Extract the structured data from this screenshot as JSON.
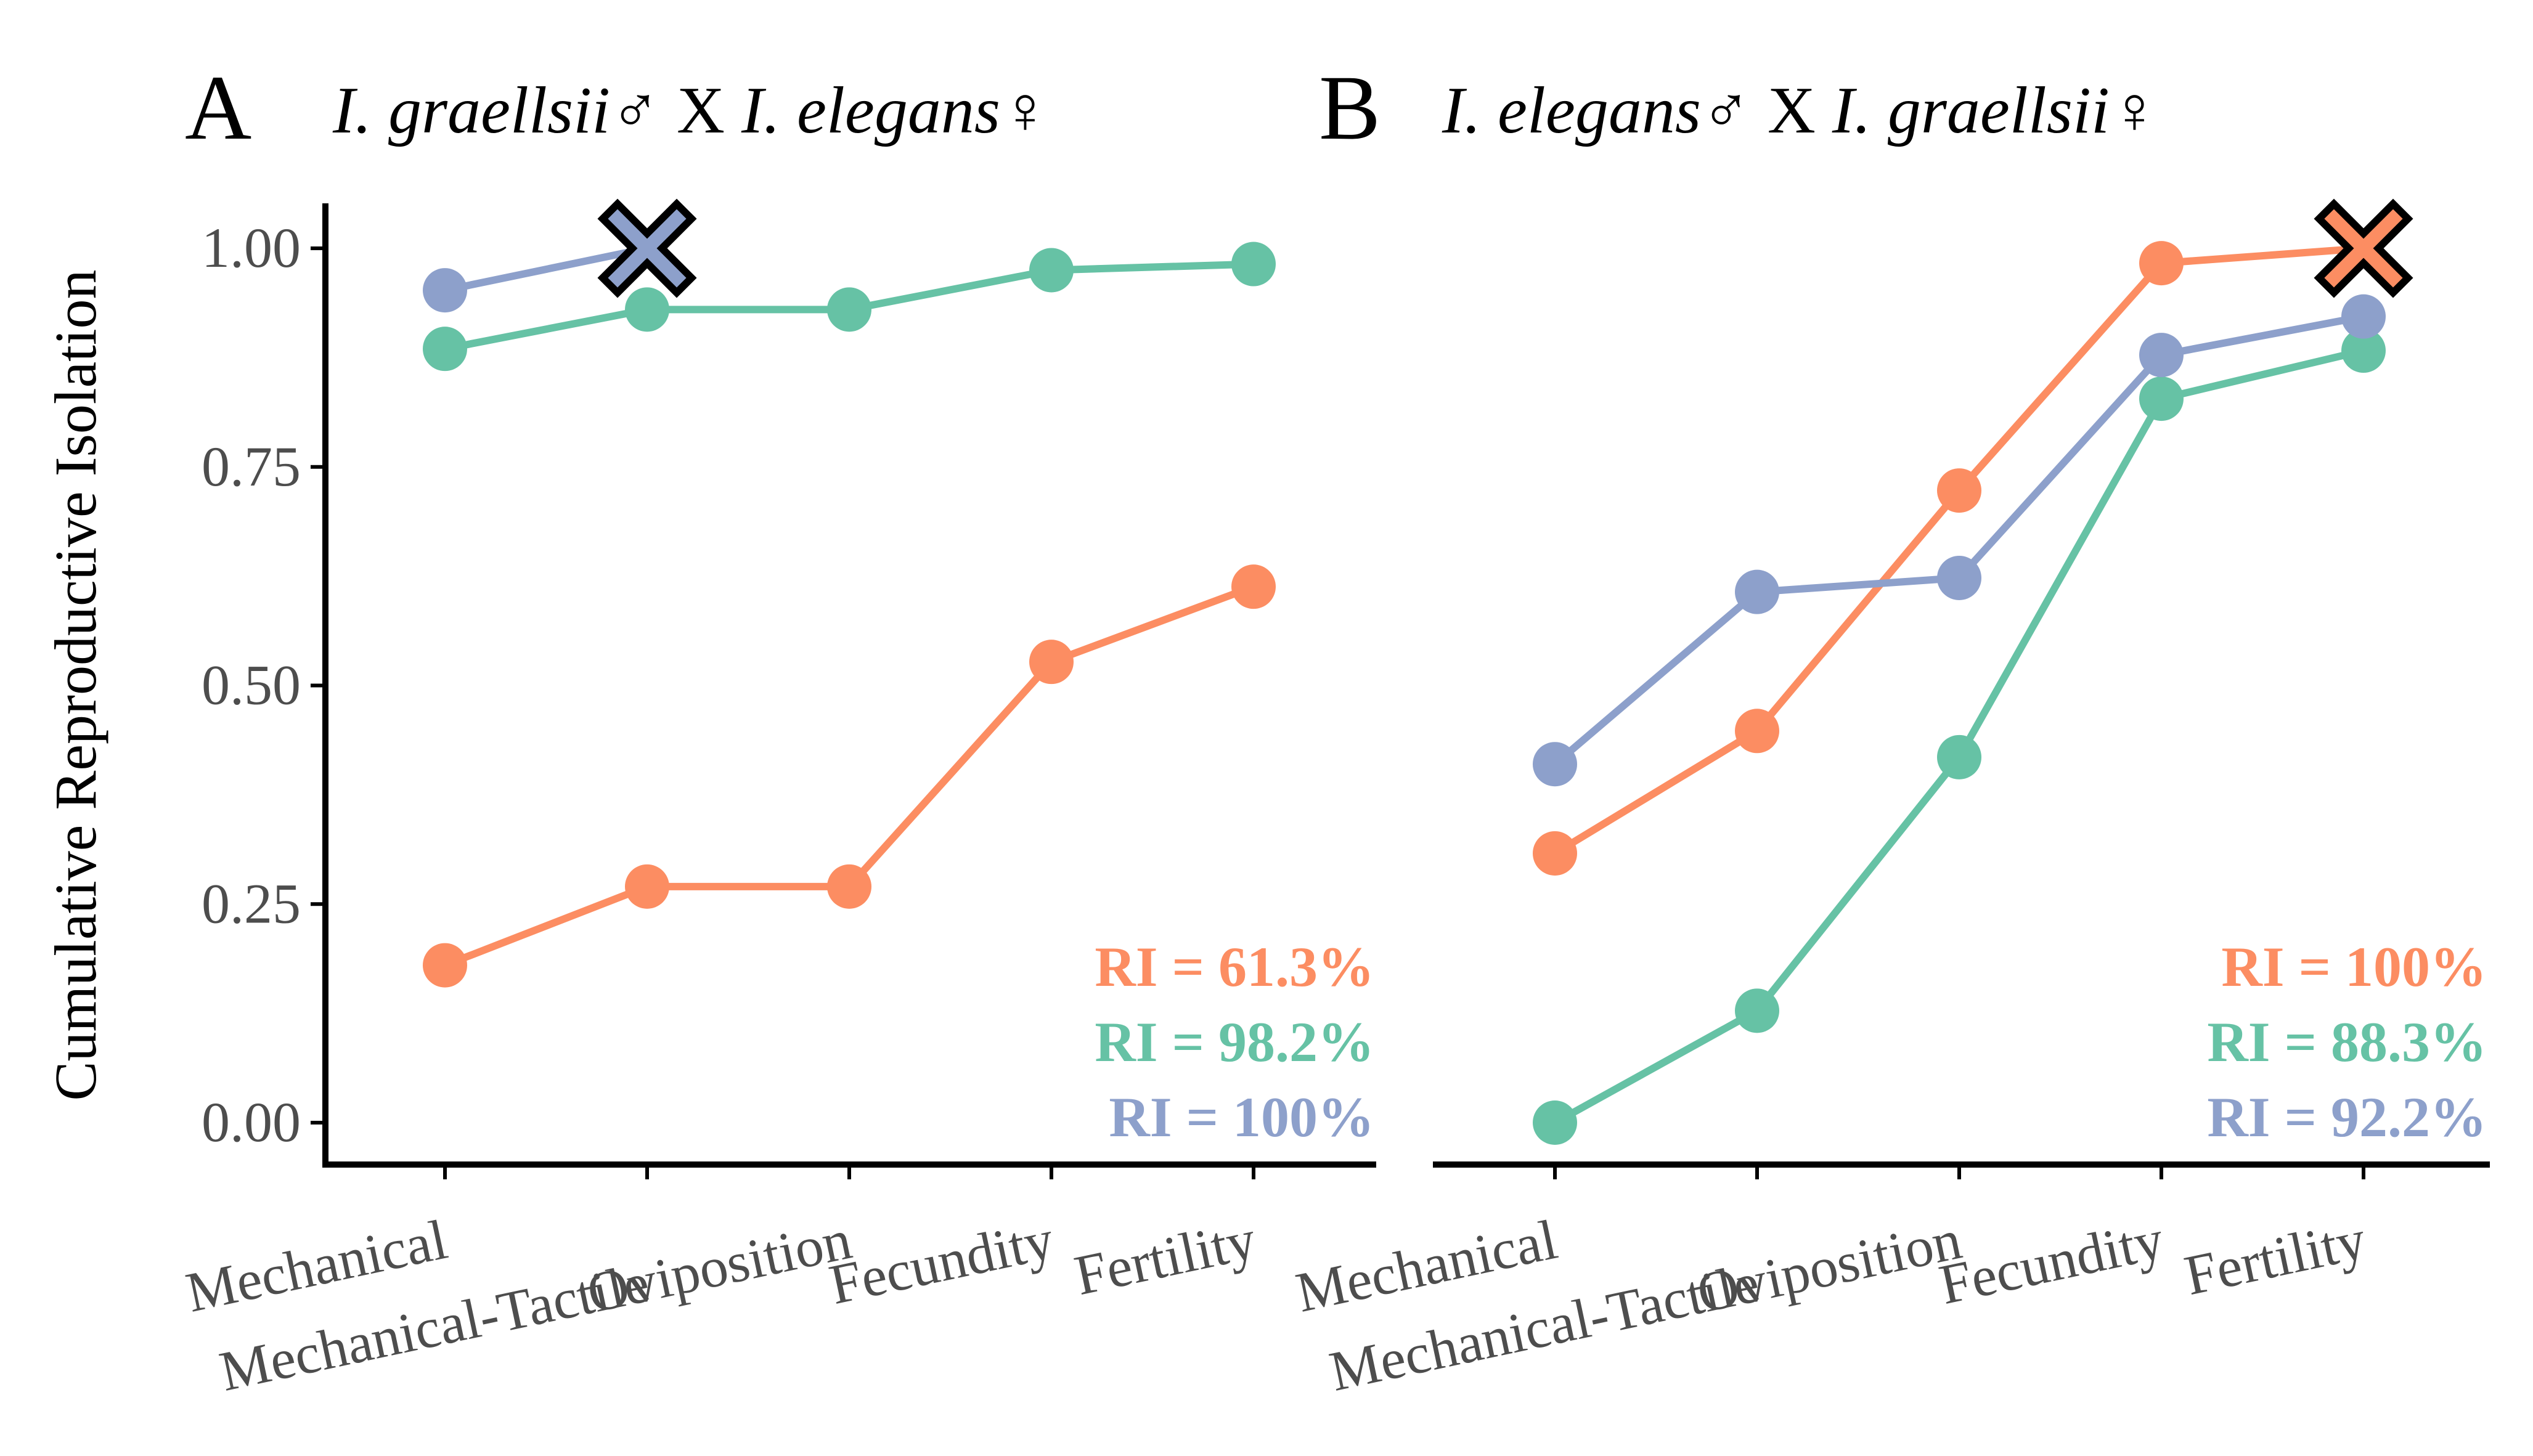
{
  "ylabel": "Cumulative Reproductive Isolation",
  "colors": {
    "orange": "#FC8D62",
    "green": "#66C2A5",
    "blue": "#8DA0CB",
    "axis": "#000000",
    "tick_text": "#4D4D4D"
  },
  "chart_data": [
    {
      "type": "line",
      "panel_label": "A",
      "title_parts": [
        "I. graellsii",
        "♂",
        " X ",
        "I. elegans",
        "♀"
      ],
      "categories": [
        "Mechanical",
        "Mechanical-Tactile",
        "Oviposition",
        "Fecundity",
        "Fertility"
      ],
      "ylim": [
        -0.05,
        1.05
      ],
      "yticks": [
        "0.00",
        "0.25",
        "0.50",
        "0.75",
        "1.00"
      ],
      "xlabel": "",
      "ylabel": "Cumulative Reproductive Isolation",
      "series": [
        {
          "color": "#FC8D62",
          "values": [
            0.18,
            0.27,
            0.27,
            0.527,
            0.613
          ]
        },
        {
          "color": "#66C2A5",
          "values": [
            0.885,
            0.93,
            0.93,
            0.975,
            0.982
          ]
        },
        {
          "color": "#8DA0CB",
          "values": [
            0.952,
            1.0,
            null,
            null,
            null
          ]
        }
      ],
      "terminal_marker": {
        "series_index": 2,
        "category_index": 1,
        "value": 1.0,
        "symbol": "x",
        "color": "#8DA0CB"
      },
      "annotations": [
        {
          "text": "RI = 61.3%",
          "color": "#FC8D62"
        },
        {
          "text": "RI = 98.2%",
          "color": "#66C2A5"
        },
        {
          "text": "RI = 100%",
          "color": "#8DA0CB"
        }
      ],
      "grid": false,
      "legend": "none"
    },
    {
      "type": "line",
      "panel_label": "B",
      "title_parts": [
        "I. elegans",
        "♂",
        " X ",
        "I. graellsii",
        "♀"
      ],
      "categories": [
        "Mechanical",
        "Mechanical-Tactile",
        "Oviposition",
        "Fecundity",
        "Fertility"
      ],
      "ylim": [
        -0.05,
        1.05
      ],
      "xlabel": "",
      "series": [
        {
          "color": "#FC8D62",
          "values": [
            0.308,
            0.448,
            0.723,
            0.983,
            1.0
          ]
        },
        {
          "color": "#66C2A5",
          "values": [
            0.0,
            0.128,
            0.418,
            0.828,
            0.883
          ]
        },
        {
          "color": "#8DA0CB",
          "values": [
            0.41,
            0.607,
            0.623,
            0.878,
            0.922
          ]
        }
      ],
      "terminal_marker": {
        "series_index": 0,
        "category_index": 4,
        "value": 1.0,
        "symbol": "x",
        "color": "#FC8D62"
      },
      "annotations": [
        {
          "text": "RI = 100%",
          "color": "#FC8D62"
        },
        {
          "text": "RI = 88.3%",
          "color": "#66C2A5"
        },
        {
          "text": "RI = 92.2%",
          "color": "#8DA0CB"
        }
      ],
      "grid": false,
      "legend": "none"
    }
  ]
}
